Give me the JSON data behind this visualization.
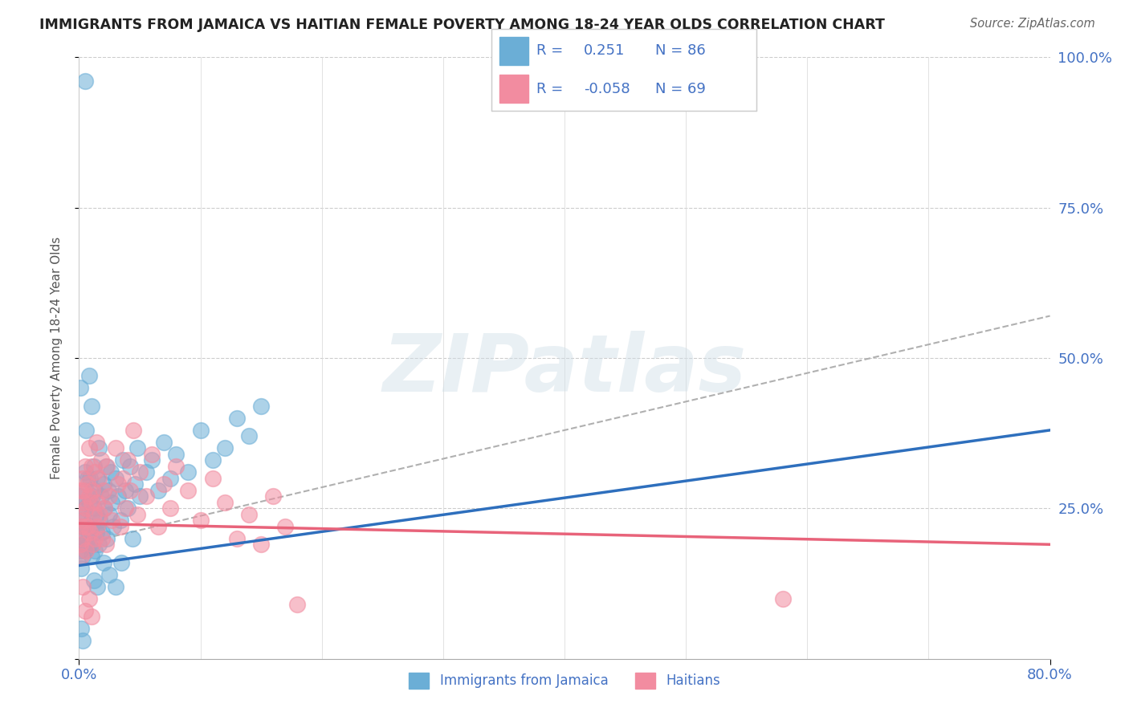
{
  "title": "IMMIGRANTS FROM JAMAICA VS HAITIAN FEMALE POVERTY AMONG 18-24 YEAR OLDS CORRELATION CHART",
  "source": "Source: ZipAtlas.com",
  "ylabel": "Female Poverty Among 18-24 Year Olds",
  "blue_color": "#6baed6",
  "pink_color": "#f28ca0",
  "legend_text_color": "#4472c4",
  "background_color": "#ffffff",
  "xmin": 0.0,
  "xmax": 0.8,
  "ymin": 0.0,
  "ymax": 1.0,
  "jamaica_trend": [
    0.0,
    0.8,
    0.155,
    0.38
  ],
  "haiti_trend": [
    0.0,
    0.8,
    0.225,
    0.19
  ],
  "dash_trend": [
    0.0,
    0.8,
    0.19,
    0.57
  ],
  "jamaica_scatter": [
    [
      0.001,
      0.22
    ],
    [
      0.001,
      0.18
    ],
    [
      0.001,
      0.27
    ],
    [
      0.002,
      0.2
    ],
    [
      0.002,
      0.15
    ],
    [
      0.002,
      0.24
    ],
    [
      0.003,
      0.17
    ],
    [
      0.003,
      0.23
    ],
    [
      0.003,
      0.19
    ],
    [
      0.004,
      0.19
    ],
    [
      0.004,
      0.22
    ],
    [
      0.004,
      0.26
    ],
    [
      0.005,
      0.25
    ],
    [
      0.005,
      0.18
    ],
    [
      0.005,
      0.31
    ],
    [
      0.006,
      0.22
    ],
    [
      0.006,
      0.28
    ],
    [
      0.007,
      0.2
    ],
    [
      0.007,
      0.3
    ],
    [
      0.008,
      0.19
    ],
    [
      0.008,
      0.26
    ],
    [
      0.009,
      0.21
    ],
    [
      0.009,
      0.3
    ],
    [
      0.01,
      0.24
    ],
    [
      0.01,
      0.17
    ],
    [
      0.01,
      0.22
    ],
    [
      0.011,
      0.27
    ],
    [
      0.011,
      0.19
    ],
    [
      0.012,
      0.25
    ],
    [
      0.012,
      0.32
    ],
    [
      0.013,
      0.18
    ],
    [
      0.013,
      0.28
    ],
    [
      0.014,
      0.24
    ],
    [
      0.014,
      0.21
    ],
    [
      0.015,
      0.22
    ],
    [
      0.015,
      0.3
    ],
    [
      0.016,
      0.19
    ],
    [
      0.016,
      0.35
    ],
    [
      0.017,
      0.23
    ],
    [
      0.018,
      0.27
    ],
    [
      0.019,
      0.21
    ],
    [
      0.02,
      0.29
    ],
    [
      0.021,
      0.25
    ],
    [
      0.022,
      0.32
    ],
    [
      0.023,
      0.2
    ],
    [
      0.024,
      0.28
    ],
    [
      0.025,
      0.24
    ],
    [
      0.026,
      0.31
    ],
    [
      0.027,
      0.26
    ],
    [
      0.028,
      0.22
    ],
    [
      0.03,
      0.3
    ],
    [
      0.032,
      0.27
    ],
    [
      0.034,
      0.23
    ],
    [
      0.036,
      0.33
    ],
    [
      0.038,
      0.28
    ],
    [
      0.04,
      0.25
    ],
    [
      0.042,
      0.32
    ],
    [
      0.044,
      0.2
    ],
    [
      0.046,
      0.29
    ],
    [
      0.048,
      0.35
    ],
    [
      0.05,
      0.27
    ],
    [
      0.055,
      0.31
    ],
    [
      0.06,
      0.33
    ],
    [
      0.065,
      0.28
    ],
    [
      0.07,
      0.36
    ],
    [
      0.075,
      0.3
    ],
    [
      0.08,
      0.34
    ],
    [
      0.09,
      0.31
    ],
    [
      0.1,
      0.38
    ],
    [
      0.11,
      0.33
    ],
    [
      0.12,
      0.35
    ],
    [
      0.13,
      0.4
    ],
    [
      0.14,
      0.37
    ],
    [
      0.15,
      0.42
    ],
    [
      0.005,
      0.96
    ],
    [
      0.008,
      0.47
    ],
    [
      0.002,
      0.05
    ],
    [
      0.003,
      0.03
    ],
    [
      0.001,
      0.45
    ],
    [
      0.006,
      0.38
    ],
    [
      0.01,
      0.42
    ],
    [
      0.012,
      0.13
    ],
    [
      0.015,
      0.12
    ],
    [
      0.02,
      0.16
    ],
    [
      0.025,
      0.14
    ],
    [
      0.03,
      0.12
    ],
    [
      0.035,
      0.16
    ]
  ],
  "haiti_scatter": [
    [
      0.001,
      0.22
    ],
    [
      0.001,
      0.19
    ],
    [
      0.001,
      0.28
    ],
    [
      0.002,
      0.24
    ],
    [
      0.002,
      0.17
    ],
    [
      0.003,
      0.26
    ],
    [
      0.003,
      0.2
    ],
    [
      0.003,
      0.3
    ],
    [
      0.004,
      0.28
    ],
    [
      0.004,
      0.23
    ],
    [
      0.005,
      0.22
    ],
    [
      0.005,
      0.32
    ],
    [
      0.006,
      0.25
    ],
    [
      0.006,
      0.18
    ],
    [
      0.007,
      0.29
    ],
    [
      0.007,
      0.22
    ],
    [
      0.008,
      0.27
    ],
    [
      0.008,
      0.35
    ],
    [
      0.009,
      0.21
    ],
    [
      0.01,
      0.26
    ],
    [
      0.01,
      0.32
    ],
    [
      0.011,
      0.19
    ],
    [
      0.011,
      0.28
    ],
    [
      0.012,
      0.24
    ],
    [
      0.013,
      0.31
    ],
    [
      0.013,
      0.2
    ],
    [
      0.014,
      0.36
    ],
    [
      0.015,
      0.26
    ],
    [
      0.015,
      0.22
    ],
    [
      0.016,
      0.3
    ],
    [
      0.017,
      0.24
    ],
    [
      0.018,
      0.33
    ],
    [
      0.019,
      0.2
    ],
    [
      0.02,
      0.28
    ],
    [
      0.021,
      0.25
    ],
    [
      0.022,
      0.19
    ],
    [
      0.023,
      0.32
    ],
    [
      0.025,
      0.27
    ],
    [
      0.027,
      0.23
    ],
    [
      0.03,
      0.35
    ],
    [
      0.032,
      0.29
    ],
    [
      0.034,
      0.22
    ],
    [
      0.036,
      0.3
    ],
    [
      0.038,
      0.25
    ],
    [
      0.04,
      0.33
    ],
    [
      0.042,
      0.28
    ],
    [
      0.045,
      0.38
    ],
    [
      0.048,
      0.24
    ],
    [
      0.05,
      0.31
    ],
    [
      0.055,
      0.27
    ],
    [
      0.06,
      0.34
    ],
    [
      0.065,
      0.22
    ],
    [
      0.07,
      0.29
    ],
    [
      0.075,
      0.25
    ],
    [
      0.08,
      0.32
    ],
    [
      0.09,
      0.28
    ],
    [
      0.1,
      0.23
    ],
    [
      0.11,
      0.3
    ],
    [
      0.12,
      0.26
    ],
    [
      0.13,
      0.2
    ],
    [
      0.14,
      0.24
    ],
    [
      0.15,
      0.19
    ],
    [
      0.16,
      0.27
    ],
    [
      0.17,
      0.22
    ],
    [
      0.18,
      0.09
    ],
    [
      0.003,
      0.12
    ],
    [
      0.005,
      0.08
    ],
    [
      0.008,
      0.1
    ],
    [
      0.01,
      0.07
    ],
    [
      0.58,
      0.1
    ]
  ]
}
